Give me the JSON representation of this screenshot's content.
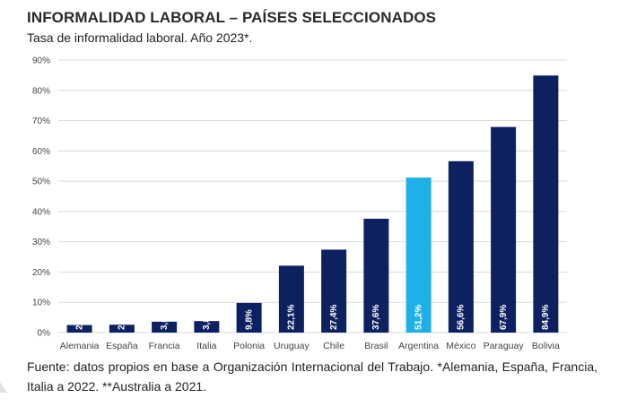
{
  "header": {
    "title": "INFORMALIDAD LABORAL – PAÍSES SELECCIONADOS",
    "subtitle": "Tasa de informalidad laboral. Año 2023*."
  },
  "footer": {
    "source": "Fuente: datos propios en base a Organización Internacional del Trabajo. *Alemania, España, Francia, Italia a 2022. **Australia a 2021."
  },
  "colors": {
    "bar": "#0d2160",
    "highlight": "#1fb0e8",
    "grid": "#d9d9d9",
    "axis_text": "#444444",
    "label_text": "#ffffff"
  },
  "chart_data": {
    "type": "bar",
    "categories": [
      "Alemania",
      "España",
      "Francia",
      "Italia",
      "Polonia",
      "Uruguay",
      "Chile",
      "Brasil",
      "Argentina",
      "México",
      "Paraguay",
      "Bolivia"
    ],
    "values": [
      2.5,
      2.6,
      3.6,
      3.8,
      9.8,
      22.1,
      27.4,
      37.6,
      51.2,
      56.6,
      67.9,
      84.9
    ],
    "value_labels": [
      "2,5%",
      "2,6%",
      "3,6%",
      "3,8%",
      "9,8%",
      "22,1%",
      "27,4%",
      "37,6%",
      "51,2%",
      "56,6%",
      "67,9%",
      "84,9%"
    ],
    "highlight_category": "Argentina",
    "y_ticks": [
      0,
      10,
      20,
      30,
      40,
      50,
      60,
      70,
      80,
      90
    ],
    "y_tick_labels": [
      "0%",
      "10%",
      "20%",
      "30%",
      "40%",
      "50%",
      "60%",
      "70%",
      "80%",
      "90%"
    ],
    "ylim": [
      0,
      90
    ],
    "grid": true,
    "legend": "none"
  }
}
